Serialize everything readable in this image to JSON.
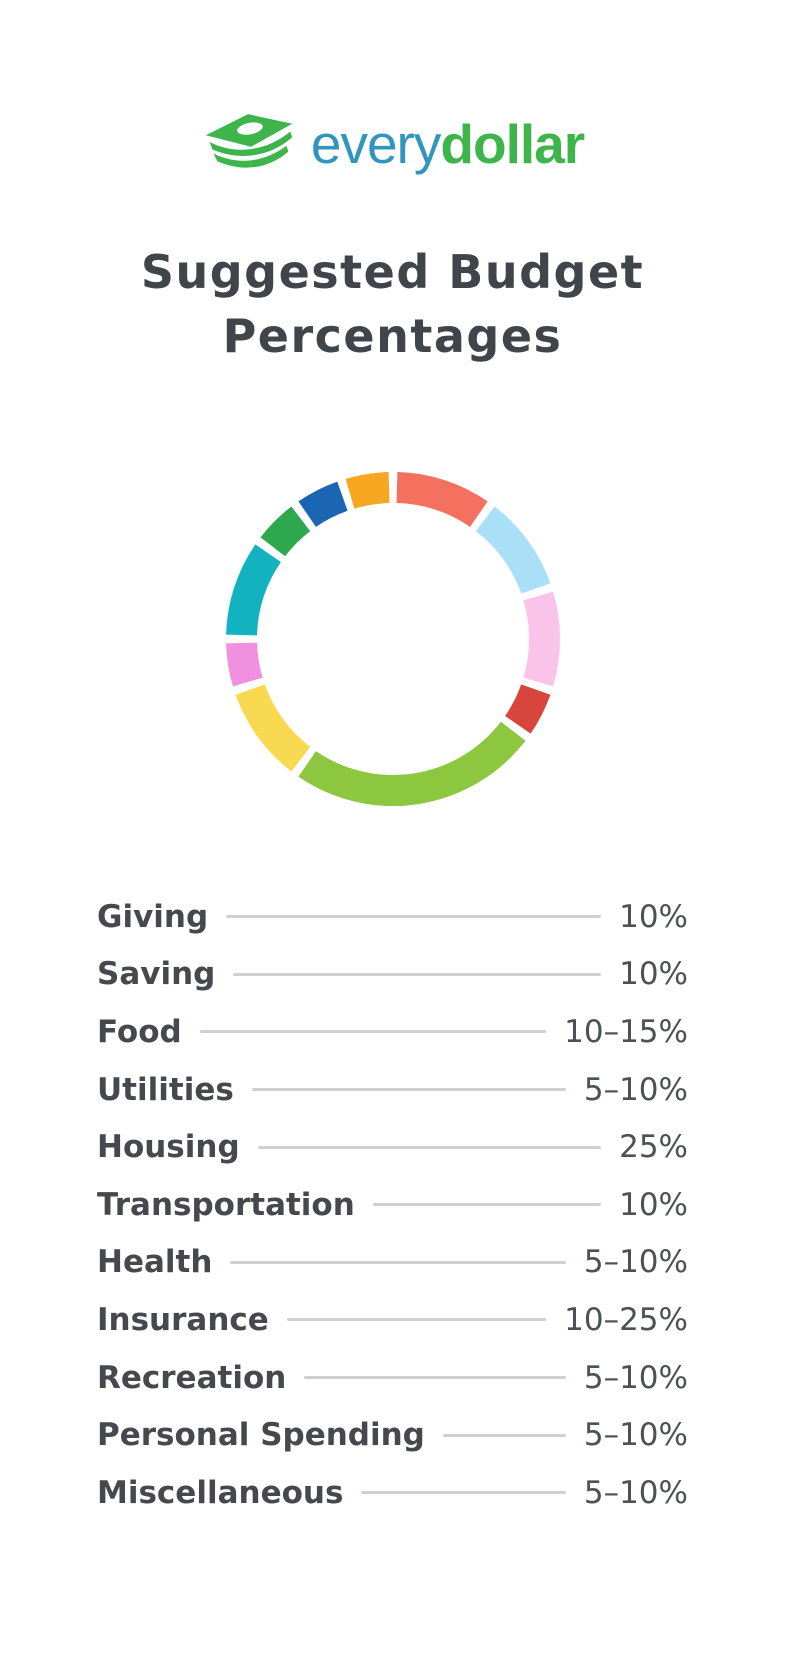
{
  "logo": {
    "brand_prefix": "every",
    "brand_suffix": "dollar",
    "icon": "money-stack-icon",
    "prefix_color": "#3096BE",
    "suffix_color": "#3DB54A",
    "icon_color": "#3DB54A"
  },
  "title": {
    "line1": "Suggested Budget",
    "line2": "Percentages",
    "color": "#3F454B"
  },
  "chart_data": {
    "type": "pie",
    "subtype": "donut",
    "title": "Suggested Budget Percentages",
    "categories": [
      "Giving",
      "Saving",
      "Food",
      "Utilities",
      "Housing",
      "Transportation",
      "Health",
      "Insurance",
      "Recreation",
      "Personal Spending",
      "Miscellaneous"
    ],
    "display_values": [
      "10%",
      "10%",
      "10–15%",
      "5–10%",
      "25%",
      "10%",
      "5–10%",
      "10–25%",
      "5–10%",
      "5–10%",
      "5–10%"
    ],
    "segment_percents": [
      10,
      10,
      10,
      5,
      25,
      10,
      5,
      10,
      5,
      5,
      5
    ],
    "colors": [
      "#F4715F",
      "#A9DFF7",
      "#F9C3EA",
      "#D8453C",
      "#8DC63F",
      "#F9D94F",
      "#F090DE",
      "#12B2C1",
      "#2EA84F",
      "#1B66B2",
      "#F7A823"
    ],
    "start_angle_deg": 0,
    "gap_degrees": 3,
    "ring_outer_radius_px": 167,
    "ring_thickness_px": 31,
    "legend_position": "below",
    "leader_line_color": "#CDD1D5"
  }
}
